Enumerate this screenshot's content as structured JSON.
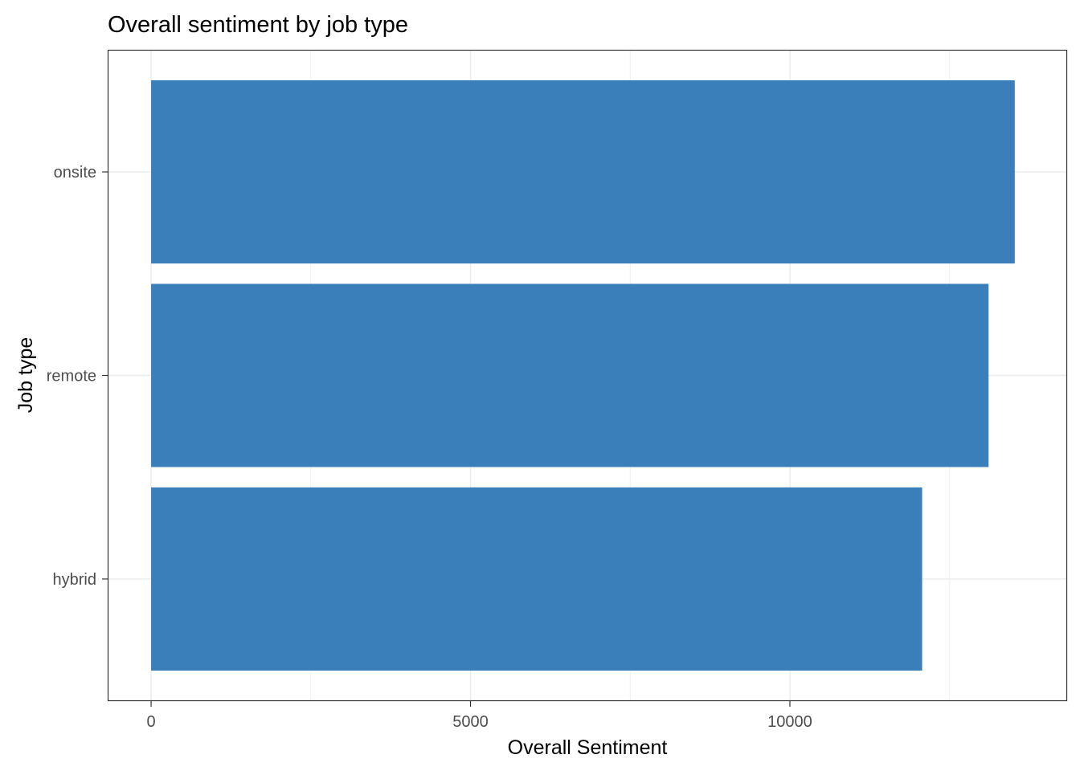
{
  "chart_data": {
    "type": "bar",
    "orientation": "horizontal",
    "title": "Overall sentiment by job type",
    "xlabel": "Overall Sentiment",
    "ylabel": "Job type",
    "categories": [
      "hybrid",
      "remote",
      "onsite"
    ],
    "values": [
      12070,
      13110,
      13520
    ],
    "xlim": [
      -680,
      14340
    ],
    "xticks": [
      0,
      5000,
      10000
    ],
    "xtick_labels": [
      "0",
      "5000",
      "10000"
    ],
    "minor_xticks": [
      2500,
      7500,
      12500
    ],
    "grid": true,
    "legend": "none",
    "bar_color": "#3A7EBA",
    "grid_color": "#EBEBEB",
    "panel_border_color": "#333333"
  }
}
